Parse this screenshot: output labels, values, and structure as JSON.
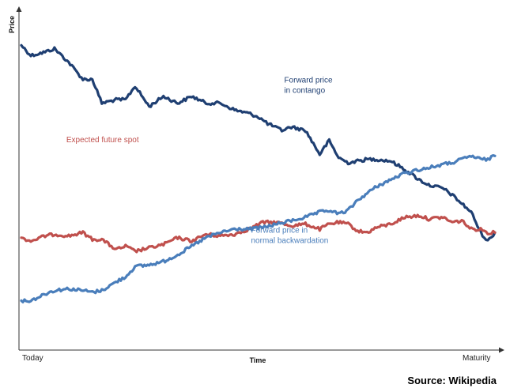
{
  "chart_data": {
    "type": "line",
    "xlabel": "Time",
    "ylabel": "Price",
    "x_ticks": [
      "Today",
      "Maturity"
    ],
    "xlim": [
      0,
      1
    ],
    "ylim": [
      0,
      1
    ],
    "grid": false,
    "series": [
      {
        "name": "Forward price in contango",
        "color": "#1f3f72",
        "x": [
          0,
          0.02,
          0.05,
          0.07,
          0.1,
          0.13,
          0.15,
          0.17,
          0.2,
          0.22,
          0.24,
          0.27,
          0.3,
          0.33,
          0.36,
          0.39,
          0.42,
          0.45,
          0.48,
          0.5,
          0.52,
          0.55,
          0.57,
          0.6,
          0.63,
          0.65,
          0.67,
          0.69,
          0.71,
          0.73,
          0.75,
          0.78,
          0.81,
          0.84,
          0.86,
          0.89,
          0.91,
          0.93,
          0.95,
          0.97,
          0.985,
          1.0
        ],
        "y": [
          0.895,
          0.865,
          0.875,
          0.885,
          0.845,
          0.795,
          0.795,
          0.725,
          0.735,
          0.735,
          0.775,
          0.715,
          0.745,
          0.725,
          0.745,
          0.725,
          0.725,
          0.705,
          0.695,
          0.685,
          0.665,
          0.645,
          0.655,
          0.645,
          0.575,
          0.615,
          0.565,
          0.55,
          0.555,
          0.56,
          0.56,
          0.555,
          0.53,
          0.5,
          0.485,
          0.475,
          0.455,
          0.43,
          0.405,
          0.345,
          0.32,
          0.345
        ]
      },
      {
        "name": "Expected future spot",
        "color": "#c0504d",
        "x": [
          0,
          0.02,
          0.05,
          0.07,
          0.1,
          0.13,
          0.15,
          0.17,
          0.2,
          0.22,
          0.24,
          0.27,
          0.3,
          0.33,
          0.36,
          0.39,
          0.42,
          0.45,
          0.48,
          0.51,
          0.54,
          0.57,
          0.6,
          0.63,
          0.65,
          0.67,
          0.69,
          0.71,
          0.73,
          0.75,
          0.78,
          0.81,
          0.84,
          0.86,
          0.89,
          0.91,
          0.93,
          0.95,
          0.97,
          0.985,
          1.0
        ],
        "y": [
          0.33,
          0.32,
          0.335,
          0.34,
          0.335,
          0.345,
          0.325,
          0.325,
          0.295,
          0.305,
          0.29,
          0.3,
          0.31,
          0.33,
          0.32,
          0.34,
          0.335,
          0.34,
          0.355,
          0.375,
          0.375,
          0.365,
          0.37,
          0.355,
          0.37,
          0.375,
          0.37,
          0.35,
          0.345,
          0.36,
          0.37,
          0.39,
          0.395,
          0.385,
          0.39,
          0.375,
          0.38,
          0.355,
          0.355,
          0.345,
          0.345
        ]
      },
      {
        "name": "Forward price in normal backwardation",
        "color": "#4a7ebb",
        "x": [
          0,
          0.02,
          0.05,
          0.07,
          0.1,
          0.13,
          0.15,
          0.17,
          0.2,
          0.22,
          0.24,
          0.27,
          0.3,
          0.33,
          0.36,
          0.39,
          0.42,
          0.45,
          0.48,
          0.51,
          0.54,
          0.57,
          0.6,
          0.63,
          0.65,
          0.67,
          0.69,
          0.71,
          0.73,
          0.75,
          0.78,
          0.81,
          0.84,
          0.86,
          0.89,
          0.91,
          0.93,
          0.95,
          0.97,
          0.985,
          1.0
        ],
        "y": [
          0.145,
          0.145,
          0.165,
          0.175,
          0.18,
          0.175,
          0.17,
          0.175,
          0.2,
          0.215,
          0.245,
          0.25,
          0.26,
          0.28,
          0.305,
          0.33,
          0.345,
          0.355,
          0.355,
          0.36,
          0.37,
          0.38,
          0.39,
          0.405,
          0.41,
          0.4,
          0.41,
          0.44,
          0.46,
          0.48,
          0.5,
          0.52,
          0.53,
          0.535,
          0.545,
          0.55,
          0.56,
          0.57,
          0.56,
          0.56,
          0.57
        ]
      }
    ],
    "annotations": [
      {
        "lines": [
          "Forward price",
          "in contango"
        ],
        "x": 0.555,
        "y": 0.785,
        "series": 0
      },
      {
        "lines": [
          "Expected future spot"
        ],
        "x": 0.095,
        "y": 0.61,
        "series": 1
      },
      {
        "lines": [
          "Forward price in",
          "normal backwardation"
        ],
        "x": 0.485,
        "y": 0.345,
        "series": 2
      }
    ]
  },
  "source_text": "Source: Wikipedia"
}
